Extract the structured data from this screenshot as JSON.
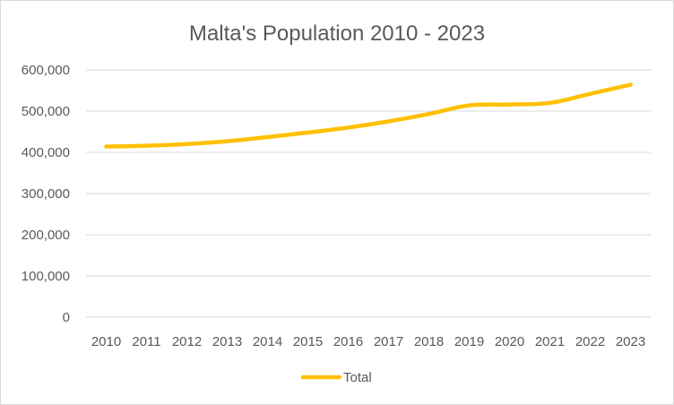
{
  "chart_data": {
    "type": "line",
    "title": "Malta's Population 2010 - 2023",
    "xlabel": "",
    "ylabel": "",
    "categories": [
      "2010",
      "2011",
      "2012",
      "2013",
      "2014",
      "2015",
      "2016",
      "2017",
      "2018",
      "2019",
      "2020",
      "2021",
      "2022",
      "2023"
    ],
    "series": [
      {
        "name": "Total",
        "color": "#FFC000",
        "values": [
          414000,
          416000,
          420000,
          427000,
          437000,
          448000,
          460000,
          475000,
          493000,
          514000,
          516000,
          520000,
          542000,
          564000
        ]
      }
    ],
    "ylim": [
      0,
      600000
    ],
    "yticks": [
      0,
      100000,
      200000,
      300000,
      400000,
      500000,
      600000
    ],
    "ytick_labels": [
      "0",
      "100,000",
      "200,000",
      "300,000",
      "400,000",
      "500,000",
      "600,000"
    ],
    "grid": "horizontal",
    "legend": "bottom"
  }
}
